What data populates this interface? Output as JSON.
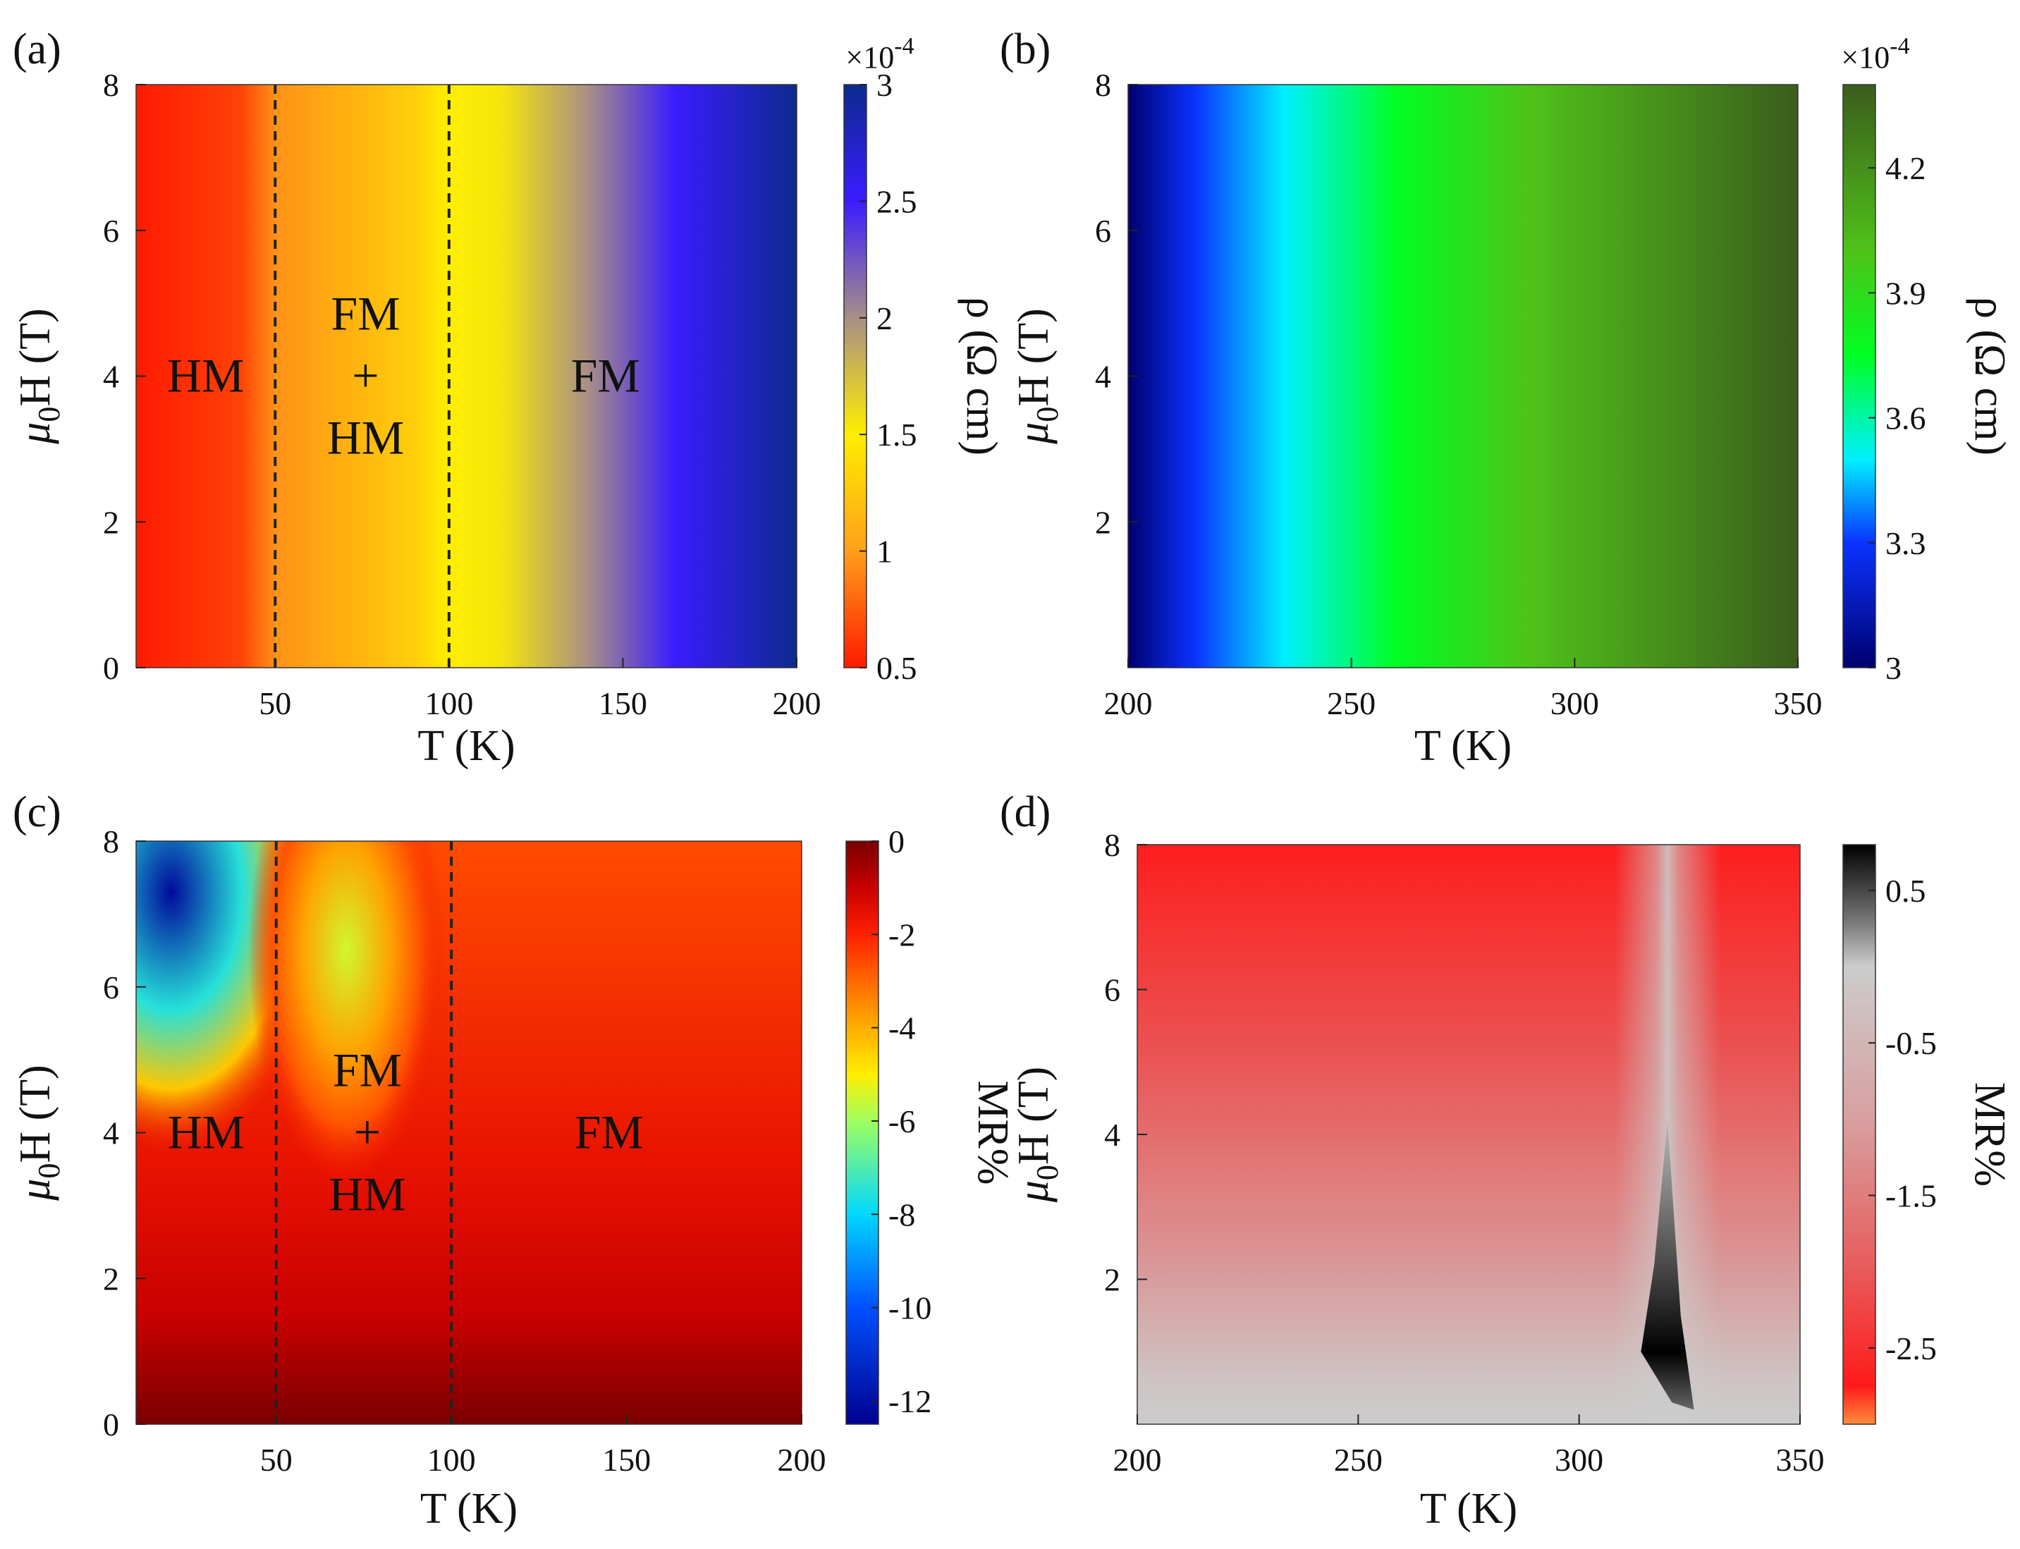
{
  "chart_data": [
    {
      "id": "a",
      "type": "heatmap",
      "panel_label": "(a)",
      "xlabel": "T (K)",
      "ylabel_parts": [
        "μ",
        "0",
        "H (T)"
      ],
      "xlim": [
        10,
        200
      ],
      "ylim": [
        0,
        8
      ],
      "xticks": [
        50,
        100,
        150,
        200
      ],
      "yticks": [
        0,
        2,
        4,
        6,
        8
      ],
      "colorbar": {
        "label": "ρ (Ω cm)",
        "multiplier": "×10",
        "exponent": "-4",
        "range": [
          0.5,
          3
        ],
        "ticks": [
          "0.5",
          "1",
          "1.5",
          "2",
          "2.5",
          "3"
        ],
        "stops": [
          {
            "value": 0.5,
            "color": "#ff1a00"
          },
          {
            "value": 1.0,
            "color": "#ff9f1a"
          },
          {
            "value": 1.5,
            "color": "#ffee00"
          },
          {
            "value": 2.0,
            "color": "#a88f86"
          },
          {
            "value": 2.5,
            "color": "#3a1cff"
          },
          {
            "value": 3.0,
            "color": "#0c2a8c"
          }
        ]
      },
      "field_by_T": [
        {
          "T": 10,
          "value": 0.5
        },
        {
          "T": 40,
          "value": 0.65
        },
        {
          "T": 50,
          "value": 0.95
        },
        {
          "T": 90,
          "value": 1.3
        },
        {
          "T": 100,
          "value": 1.5
        },
        {
          "T": 115,
          "value": 1.55
        },
        {
          "T": 140,
          "value": 2.0
        },
        {
          "T": 165,
          "value": 2.5
        },
        {
          "T": 200,
          "value": 3.0
        }
      ],
      "phase_boundaries_T": [
        50,
        100
      ],
      "regions": [
        {
          "lines": [
            "HM"
          ],
          "T": 30,
          "H": 4
        },
        {
          "lines": [
            "FM",
            "+",
            "HM"
          ],
          "T": 76,
          "H": 4
        },
        {
          "lines": [
            "FM"
          ],
          "T": 145,
          "H": 4
        }
      ]
    },
    {
      "id": "b",
      "type": "heatmap",
      "panel_label": "(b)",
      "xlabel": "T (K)",
      "ylabel_parts": [
        "μ",
        "0",
        "H (T)"
      ],
      "xlim": [
        200,
        350
      ],
      "ylim": [
        0,
        8
      ],
      "xticks": [
        200,
        250,
        300,
        350
      ],
      "yticks": [
        2,
        4,
        6,
        8
      ],
      "colorbar": {
        "label": "ρ (Ω cm)",
        "multiplier": "×10",
        "exponent": "-4",
        "range": [
          3.0,
          4.4
        ],
        "ticks": [
          "3",
          "3.3",
          "3.6",
          "3.9",
          "4.2"
        ],
        "stops": [
          {
            "value": 3.0,
            "color": "#00006e"
          },
          {
            "value": 3.3,
            "color": "#0a33ff"
          },
          {
            "value": 3.5,
            "color": "#00f0ff"
          },
          {
            "value": 3.75,
            "color": "#00ff22"
          },
          {
            "value": 4.0,
            "color": "#4fc21a"
          },
          {
            "value": 4.4,
            "color": "#3c5c1c"
          }
        ]
      },
      "field_by_T": [
        {
          "T": 200,
          "value": 3.0
        },
        {
          "T": 215,
          "value": 3.3
        },
        {
          "T": 235,
          "value": 3.5
        },
        {
          "T": 260,
          "value": 3.75
        },
        {
          "T": 290,
          "value": 4.0
        },
        {
          "T": 350,
          "value": 4.4
        }
      ],
      "phase_boundaries_T": [],
      "regions": []
    },
    {
      "id": "c",
      "type": "heatmap",
      "panel_label": "(c)",
      "xlabel": "T (K)",
      "ylabel_parts": [
        "μ",
        "0",
        "H (T)"
      ],
      "xlim": [
        10,
        200
      ],
      "ylim": [
        0,
        8
      ],
      "xticks": [
        50,
        100,
        150,
        200
      ],
      "yticks": [
        0,
        2,
        4,
        6,
        8
      ],
      "colorbar": {
        "label": "MR%",
        "range": [
          -12.5,
          0
        ],
        "ticks": [
          "0",
          "-2",
          "-4",
          "-6",
          "-8",
          "-10",
          "-12"
        ],
        "stops": [
          {
            "value": -12.5,
            "color": "#00008f"
          },
          {
            "value": -10,
            "color": "#0050ff"
          },
          {
            "value": -8,
            "color": "#00d8ff"
          },
          {
            "value": -6,
            "color": "#a0ff5f"
          },
          {
            "value": -5,
            "color": "#ffee00"
          },
          {
            "value": -3.5,
            "color": "#ff8c00"
          },
          {
            "value": -2,
            "color": "#ff2000"
          },
          {
            "value": -1,
            "color": "#c80000"
          },
          {
            "value": 0,
            "color": "#7a0000"
          }
        ]
      },
      "blobs": [
        {
          "T": 20,
          "H": 7.3,
          "value": -12.2,
          "radius_T": 45,
          "radius_H": 3.6
        },
        {
          "T": 70,
          "H": 6.5,
          "value": -5.5,
          "radius_T": 28,
          "radius_H": 3.2
        }
      ],
      "phase_boundaries_T": [
        50,
        100
      ],
      "regions": [
        {
          "lines": [
            "HM"
          ],
          "T": 30,
          "H": 4
        },
        {
          "lines": [
            "FM",
            "+",
            "HM"
          ],
          "T": 76,
          "H": 4
        },
        {
          "lines": [
            "FM"
          ],
          "T": 145,
          "H": 4
        }
      ]
    },
    {
      "id": "d",
      "type": "heatmap",
      "panel_label": "(d)",
      "xlabel": "T (K)",
      "ylabel_parts": [
        "μ",
        "0",
        "H (T)"
      ],
      "xlim": [
        200,
        350
      ],
      "ylim": [
        0,
        8
      ],
      "xticks": [
        200,
        250,
        300,
        350
      ],
      "yticks": [
        2,
        4,
        6,
        8
      ],
      "colorbar": {
        "label": "MR%",
        "range": [
          -3.0,
          0.8
        ],
        "ticks": [
          "0.5",
          "-0.5",
          "-1.5",
          "-2.5"
        ],
        "stops": [
          {
            "value": -3.0,
            "color": "#ff8c3c"
          },
          {
            "value": -2.75,
            "color": "#ff1a1a"
          },
          {
            "value": -2.0,
            "color": "#e85a5a"
          },
          {
            "value": -1.0,
            "color": "#d8a0a0"
          },
          {
            "value": 0.0,
            "color": "#cccccc"
          },
          {
            "value": 0.3,
            "color": "#777777"
          },
          {
            "value": 0.8,
            "color": "#000000"
          }
        ]
      },
      "ridge": {
        "T": 320,
        "H_top": 4.2,
        "H_peak": 1.0,
        "value": 0.8
      },
      "phase_boundaries_T": [],
      "regions": []
    }
  ]
}
